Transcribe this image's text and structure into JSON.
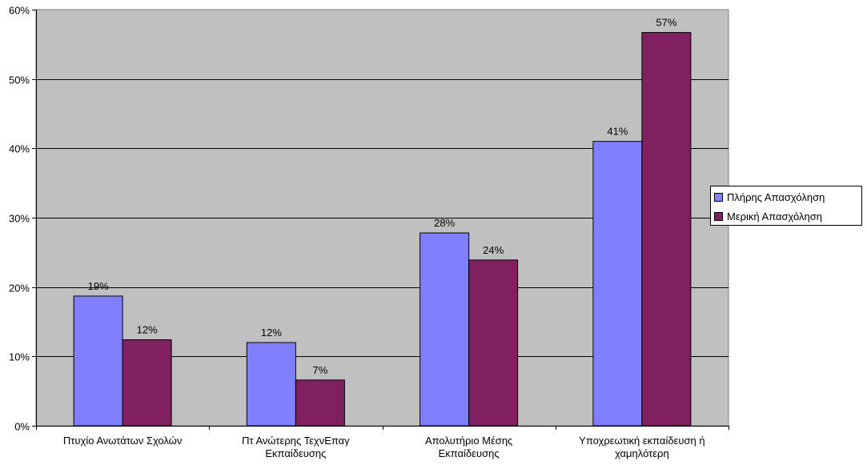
{
  "chart_data": {
    "type": "bar",
    "categories": [
      [
        "Πτυχίο Ανωτάτων Σχολών"
      ],
      [
        "Πτ Ανώτερης ΤεχνΕπαγ",
        "Εκπαίδευσης"
      ],
      [
        "Απολυτήριο Μέσης",
        "Εκπαίδευσης"
      ],
      [
        "Υποχρεωτική εκπαίδευση ή",
        "χαμηλότερη"
      ]
    ],
    "series": [
      {
        "name": "Πλήρης Απασχόληση",
        "color": "#8080ff",
        "values": [
          18.7,
          12.0,
          27.8,
          41.0
        ],
        "labels": [
          "19%",
          "12%",
          "28%",
          "41%"
        ]
      },
      {
        "name": "Μερική Απασχόληση",
        "color": "#802060",
        "values": [
          12.4,
          6.6,
          23.9,
          56.7
        ],
        "labels": [
          "12%",
          "7%",
          "24%",
          "57%"
        ]
      }
    ],
    "yticks": [
      "0%",
      "10%",
      "20%",
      "30%",
      "40%",
      "50%",
      "60%"
    ],
    "ylim": [
      0,
      60
    ],
    "plot_background": "#c0c0c0",
    "grid": true,
    "legend_position": "right"
  }
}
